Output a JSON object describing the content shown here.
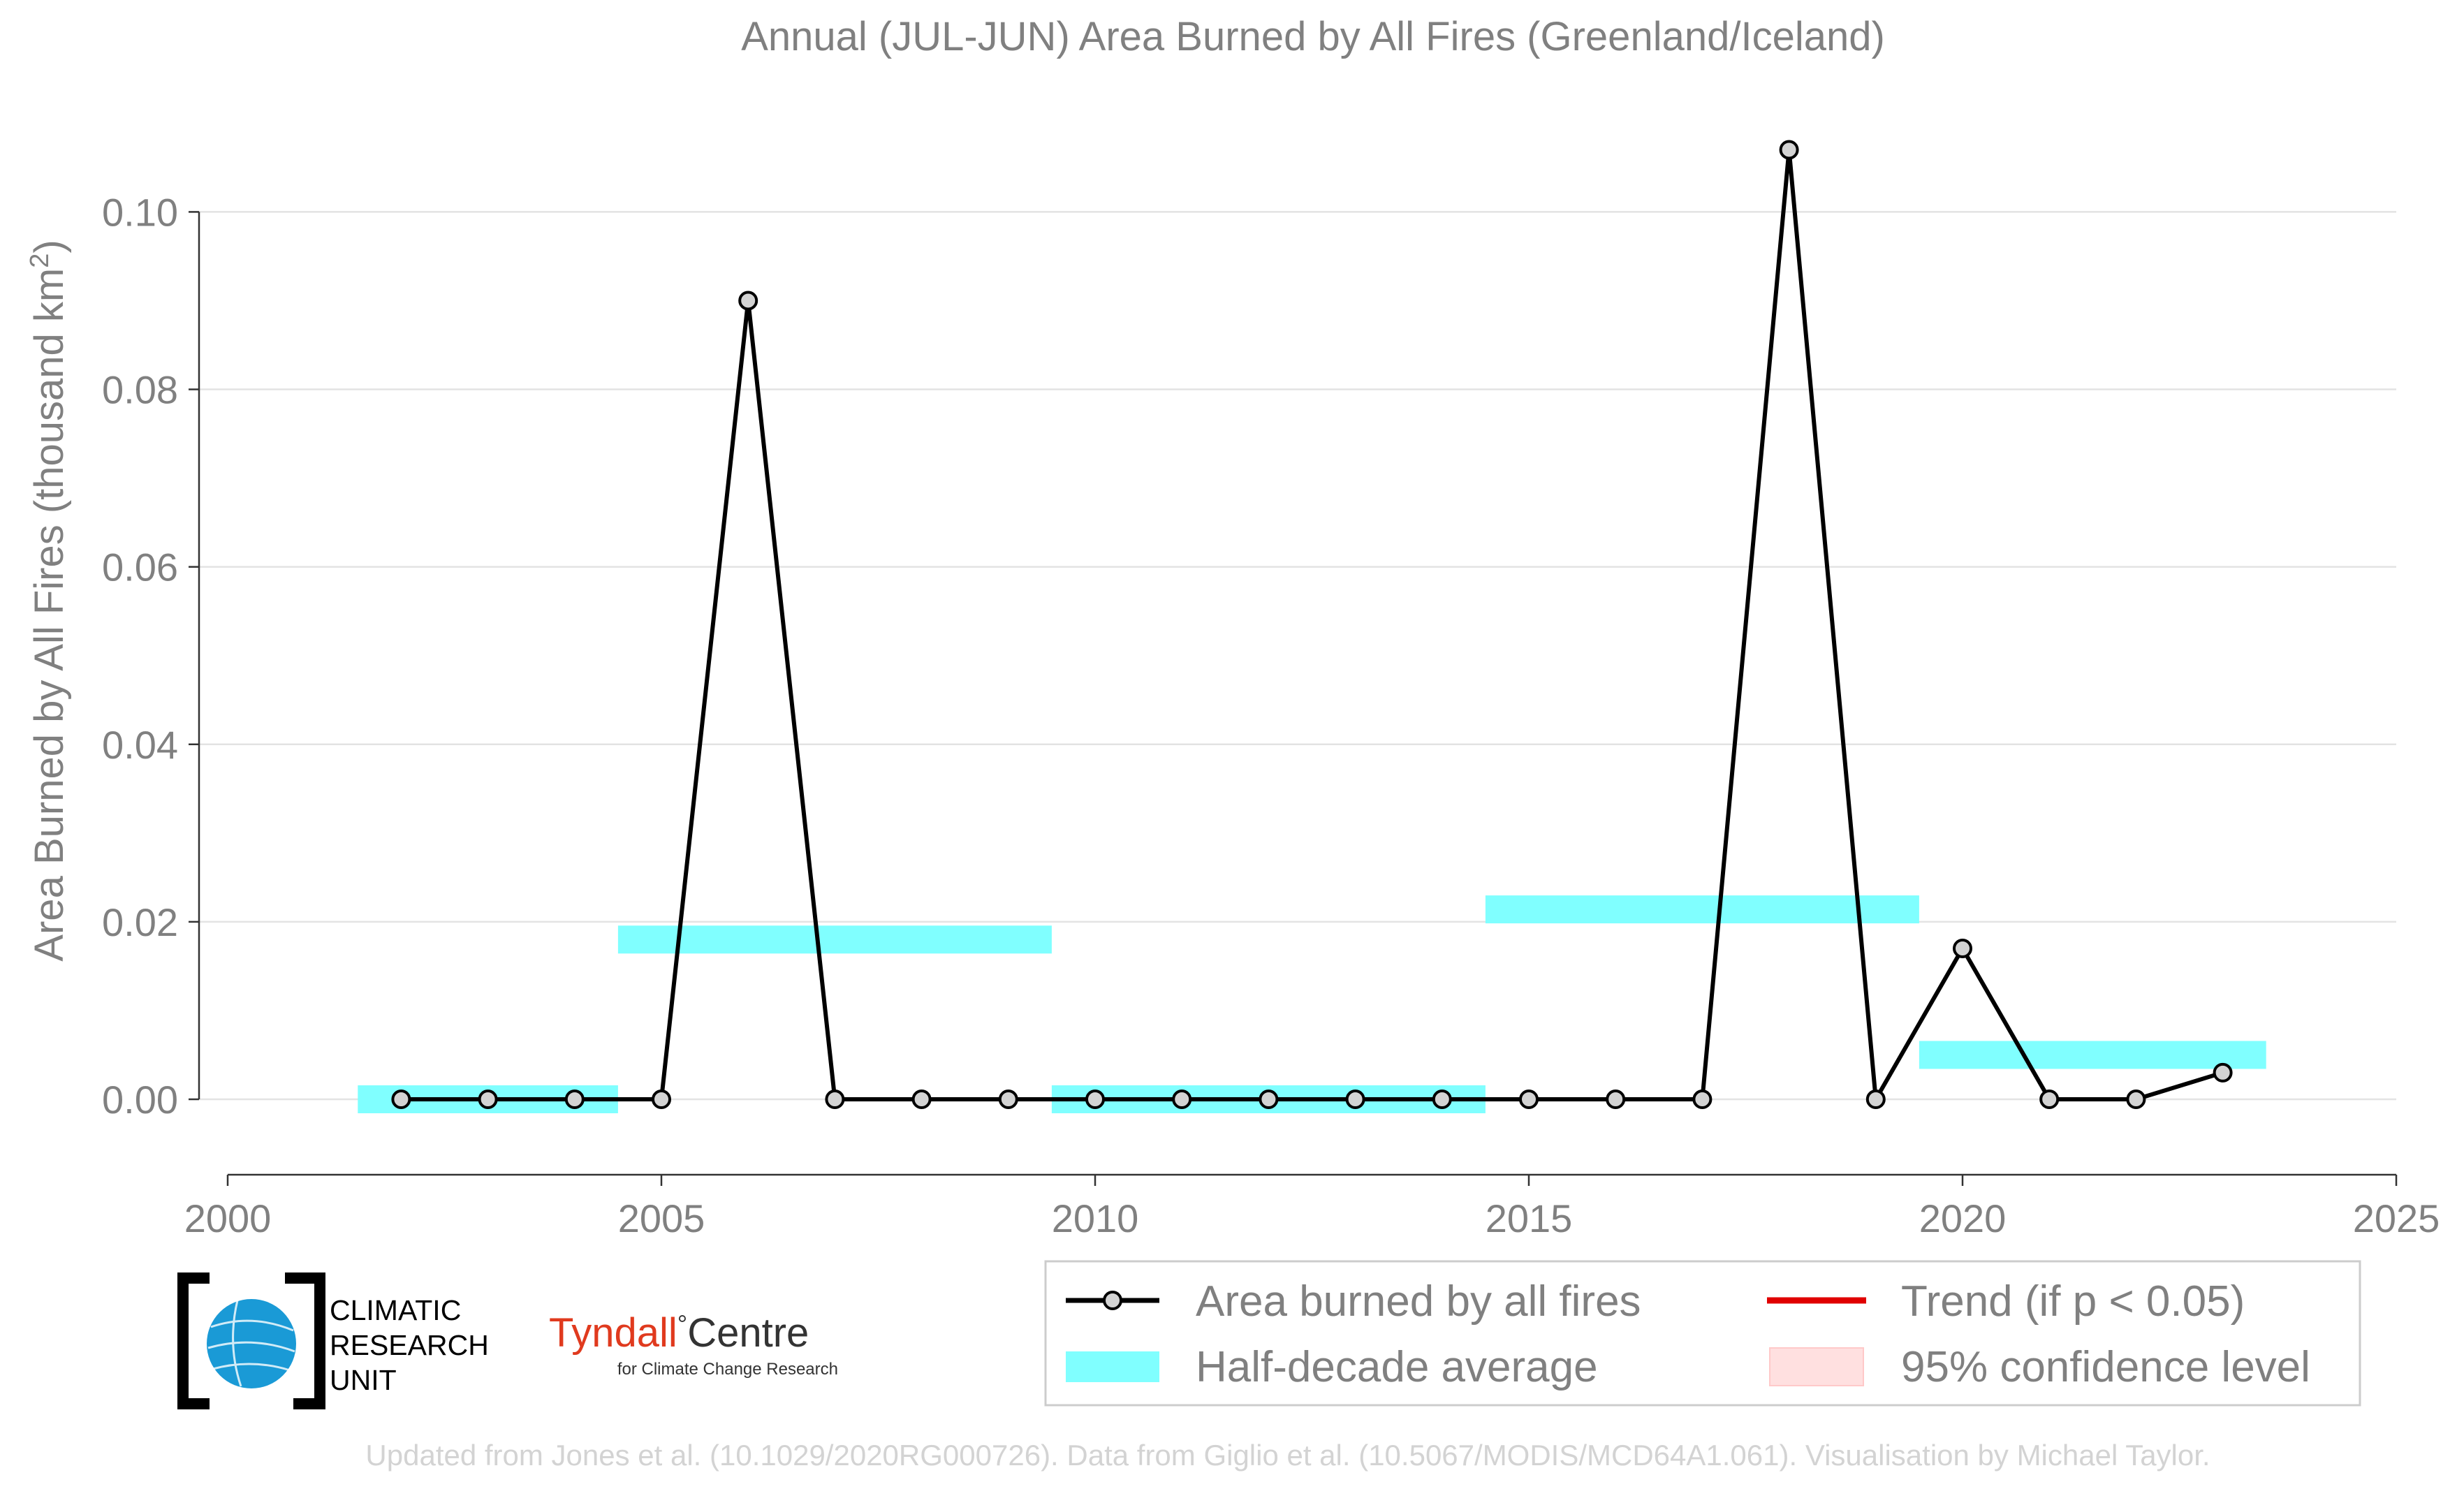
{
  "chart_data": {
    "type": "line",
    "title": "Annual (JUL-JUN) Area Burned by All Fires (Greenland/Iceland)",
    "xlabel": "",
    "ylabel": "Area Burned by All Fires (thousand km",
    "ylabel_sup": "2",
    "ylabel_close": ")",
    "xlim": [
      2000,
      2025
    ],
    "ylim": [
      -0.0085,
      0.1105
    ],
    "x_ticks": [
      2000,
      2005,
      2010,
      2015,
      2020,
      2025
    ],
    "y_ticks": [
      "0.00",
      "0.02",
      "0.04",
      "0.06",
      "0.08",
      "0.10"
    ],
    "grid": "horizontal",
    "legend_position": "bottom-right",
    "series": [
      {
        "name": "Area burned by all fires",
        "color": "#000000",
        "marker_fill": "#d3d3d3",
        "x": [
          2002,
          2003,
          2004,
          2005,
          2006,
          2007,
          2008,
          2009,
          2010,
          2011,
          2012,
          2013,
          2014,
          2015,
          2016,
          2017,
          2018,
          2019,
          2020,
          2021,
          2022,
          2023
        ],
        "y": [
          0.0,
          0.0,
          0.0,
          0.0,
          0.09,
          0.0,
          0.0,
          0.0,
          0.0,
          0.0,
          0.0,
          0.0,
          0.0,
          0.0,
          0.0,
          0.0,
          0.107,
          0.0,
          0.017,
          0.0,
          0.0,
          0.003
        ]
      }
    ],
    "half_decade_average": {
      "name": "Half-decade average",
      "color": "#80ffff",
      "segments": [
        {
          "x_start": 2001.5,
          "x_end": 2004.5,
          "value": 0.0
        },
        {
          "x_start": 2004.5,
          "x_end": 2009.5,
          "value": 0.018
        },
        {
          "x_start": 2009.5,
          "x_end": 2014.5,
          "value": 0.0
        },
        {
          "x_start": 2014.5,
          "x_end": 2019.5,
          "value": 0.0214
        },
        {
          "x_start": 2019.5,
          "x_end": 2023.5,
          "value": 0.005
        }
      ]
    },
    "legend": [
      {
        "label": "Area burned by all fires",
        "kind": "line-marker",
        "color": "#000000"
      },
      {
        "label": "Trend (if p < 0.05)",
        "kind": "line",
        "color": "#e00000"
      },
      {
        "label": "Half-decade average",
        "kind": "band",
        "color": "#80ffff"
      },
      {
        "label": "95% confidence level",
        "kind": "band",
        "color": "#ffe0e0"
      }
    ]
  },
  "logos": {
    "cru_line1": "CLIMATIC",
    "cru_line2": "RESEARCH",
    "cru_line3": "UNIT",
    "tyndall_name": "Tyndall",
    "tyndall_degree": "°",
    "tyndall_centre": "Centre",
    "tyndall_sub": "for Climate Change Research"
  },
  "footer": "Updated from Jones et al. (10.1029/2020RG000726). Data from Giglio et al. (10.5067/MODIS/MCD64A1.061). Visualisation by Michael Taylor."
}
